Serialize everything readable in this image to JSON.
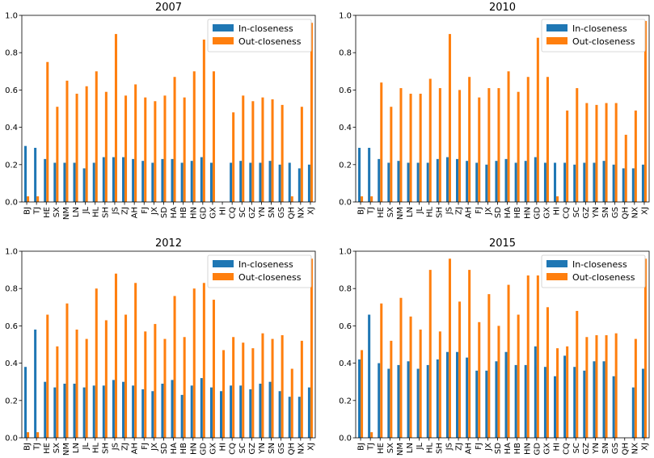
{
  "colors": {
    "in": "#1f77b4",
    "out": "#ff7f0e"
  },
  "yticks": [
    "0.0",
    "0.2",
    "0.4",
    "0.6",
    "0.8",
    "1.0"
  ],
  "chart_data": [
    {
      "type": "bar",
      "title": "2007",
      "categories": [
        "BJ",
        "TJ",
        "HE",
        "SX",
        "NM",
        "LN",
        "JL",
        "HL",
        "SH",
        "JS",
        "ZJ",
        "AH",
        "FJ",
        "JX",
        "SD",
        "HA",
        "HB",
        "HN",
        "GD",
        "GX",
        "HI",
        "CQ",
        "SC",
        "GZ",
        "YN",
        "SN",
        "GS",
        "QH",
        "NX",
        "XJ"
      ],
      "ylim": [
        0,
        1.0
      ],
      "legend_position": "top-right",
      "series": [
        {
          "name": "In-closeness",
          "values": [
            0.3,
            0.29,
            0.23,
            0.21,
            0.21,
            0.21,
            0.18,
            0.21,
            0.24,
            0.24,
            0.24,
            0.23,
            0.22,
            0.21,
            0.23,
            0.23,
            0.21,
            0.22,
            0.24,
            0.21,
            0,
            0.21,
            0.22,
            0.21,
            0.21,
            0.22,
            0.2,
            0.21,
            0.18,
            0.2
          ]
        },
        {
          "name": "Out-closeness",
          "values": [
            0.03,
            0.03,
            0.75,
            0.51,
            0.65,
            0.58,
            0.62,
            0.7,
            0.59,
            0.9,
            0.57,
            0.63,
            0.56,
            0.54,
            0.57,
            0.67,
            0.56,
            0.7,
            0.87,
            0.7,
            0,
            0.48,
            0.57,
            0.54,
            0.56,
            0.55,
            0.52,
            0.03,
            0.51,
            0.96
          ]
        }
      ]
    },
    {
      "type": "bar",
      "title": "2010",
      "categories": [
        "BJ",
        "TJ",
        "HE",
        "SX",
        "NM",
        "LN",
        "JL",
        "HL",
        "SH",
        "JS",
        "ZJ",
        "AH",
        "FJ",
        "JX",
        "SD",
        "HA",
        "HB",
        "HN",
        "GD",
        "GX",
        "HI",
        "CQ",
        "SC",
        "GZ",
        "YN",
        "SN",
        "GS",
        "QH",
        "NX",
        "XJ"
      ],
      "ylim": [
        0,
        1.0
      ],
      "legend_position": "top-right",
      "series": [
        {
          "name": "In-closeness",
          "values": [
            0.29,
            0.29,
            0.23,
            0.21,
            0.22,
            0.21,
            0.21,
            0.21,
            0.23,
            0.24,
            0.23,
            0.22,
            0.21,
            0.2,
            0.22,
            0.23,
            0.21,
            0.22,
            0.24,
            0.21,
            0.21,
            0.21,
            0.2,
            0.21,
            0.21,
            0.22,
            0.2,
            0.18,
            0.18,
            0.2
          ]
        },
        {
          "name": "Out-closeness",
          "values": [
            0.03,
            0.03,
            0.64,
            0.51,
            0.61,
            0.58,
            0.58,
            0.66,
            0.61,
            0.9,
            0.6,
            0.67,
            0.56,
            0.61,
            0.61,
            0.7,
            0.59,
            0.67,
            0.88,
            0.67,
            0.03,
            0.49,
            0.61,
            0.53,
            0.52,
            0.53,
            0.53,
            0.36,
            0.49,
            0.97
          ]
        }
      ]
    },
    {
      "type": "bar",
      "title": "2012",
      "categories": [
        "BJ",
        "TJ",
        "HE",
        "SX",
        "NM",
        "LN",
        "JL",
        "HL",
        "SH",
        "JS",
        "ZJ",
        "AH",
        "FJ",
        "JX",
        "SD",
        "HA",
        "HB",
        "HN",
        "GD",
        "GX",
        "HI",
        "CQ",
        "SC",
        "GZ",
        "YN",
        "SN",
        "GS",
        "QH",
        "NX",
        "XJ"
      ],
      "ylim": [
        0,
        1.0
      ],
      "legend_position": "top-right",
      "series": [
        {
          "name": "In-closeness",
          "values": [
            0.38,
            0.58,
            0.3,
            0.27,
            0.29,
            0.29,
            0.27,
            0.28,
            0.28,
            0.31,
            0.3,
            0.28,
            0.26,
            0.25,
            0.29,
            0.31,
            0.23,
            0.28,
            0.32,
            0.27,
            0.25,
            0.28,
            0.28,
            0.26,
            0.29,
            0.3,
            0.25,
            0.22,
            0.22,
            0.27
          ]
        },
        {
          "name": "Out-closeness",
          "values": [
            0.03,
            0.03,
            0.66,
            0.49,
            0.72,
            0.58,
            0.53,
            0.8,
            0.63,
            0.88,
            0.66,
            0.83,
            0.57,
            0.61,
            0.53,
            0.76,
            0.54,
            0.8,
            0.83,
            0.74,
            0.47,
            0.54,
            0.51,
            0.48,
            0.56,
            0.53,
            0.55,
            0.37,
            0.52,
            0.96
          ]
        }
      ]
    },
    {
      "type": "bar",
      "title": "2015",
      "categories": [
        "BJ",
        "TJ",
        "HE",
        "SX",
        "NM",
        "LN",
        "JL",
        "HL",
        "SH",
        "JS",
        "ZJ",
        "AH",
        "FJ",
        "JX",
        "SD",
        "HA",
        "HB",
        "HN",
        "GD",
        "GX",
        "HI",
        "CQ",
        "SC",
        "GZ",
        "YN",
        "SN",
        "GS",
        "QH",
        "NX",
        "XJ"
      ],
      "ylim": [
        0,
        1.0
      ],
      "legend_position": "top-right",
      "series": [
        {
          "name": "In-closeness",
          "values": [
            0.42,
            0.66,
            0.4,
            0.37,
            0.39,
            0.41,
            0.37,
            0.39,
            0.42,
            0.46,
            0.46,
            0.43,
            0.36,
            0.36,
            0.41,
            0.46,
            0.39,
            0.39,
            0.49,
            0.38,
            0.33,
            0.44,
            0.38,
            0.36,
            0.41,
            0.41,
            0.33,
            0,
            0.27,
            0.37
          ]
        },
        {
          "name": "Out-closeness",
          "values": [
            0.47,
            0.03,
            0.72,
            0.52,
            0.75,
            0.65,
            0.58,
            0.9,
            0.57,
            0.96,
            0.73,
            0.9,
            0.62,
            0.77,
            0.6,
            0.82,
            0.66,
            0.87,
            0.87,
            0.7,
            0.48,
            0.49,
            0.68,
            0.54,
            0.55,
            0.55,
            0.56,
            0,
            0.53,
            0.96
          ]
        }
      ]
    }
  ]
}
